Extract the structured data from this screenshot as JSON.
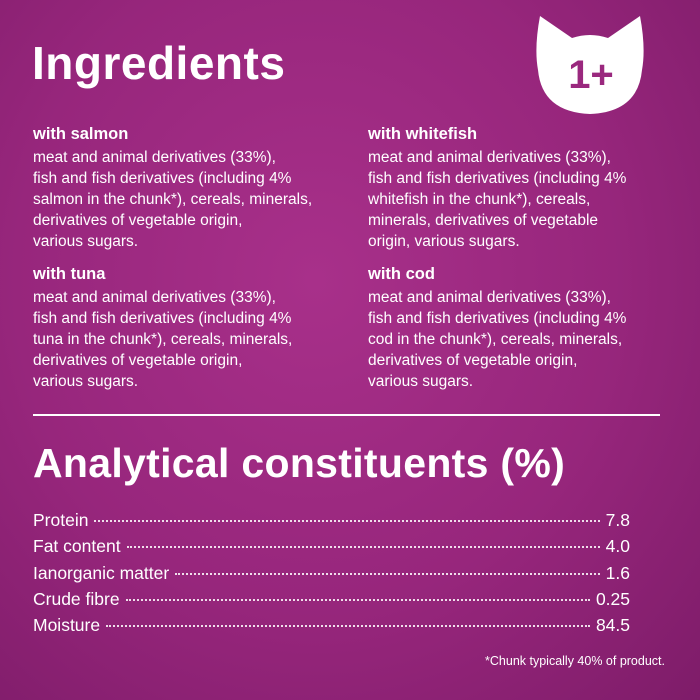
{
  "header": {
    "title": "Ingredients",
    "badge": "1+"
  },
  "ingredients": [
    {
      "title": "with salmon",
      "lines": [
        "meat and animal derivatives (33%),",
        "fish and fish derivatives (including 4%",
        "salmon in the chunk*), cereals, minerals,",
        "derivatives of vegetable origin,",
        "various sugars."
      ]
    },
    {
      "title": "with whitefish",
      "lines": [
        "meat and animal derivatives (33%),",
        "fish and fish derivatives (including 4%",
        "whitefish in the chunk*), cereals,",
        "minerals, derivatives of vegetable",
        "origin, various sugars."
      ]
    },
    {
      "title": "with tuna",
      "lines": [
        "meat and animal derivatives (33%),",
        "fish and fish derivatives (including 4%",
        "tuna in the chunk*), cereals, minerals,",
        "derivatives of vegetable origin,",
        "various sugars."
      ]
    },
    {
      "title": "with cod",
      "lines": [
        "meat and animal derivatives (33%),",
        "fish and fish derivatives (including 4%",
        "cod in the chunk*), cereals, minerals,",
        "derivatives of vegetable origin,",
        "various sugars."
      ]
    }
  ],
  "constituents": {
    "title": "Analytical constituents (%)",
    "rows": [
      [
        "Protein",
        "7.8"
      ],
      [
        "Fat content",
        "4.0"
      ],
      [
        "Ianorganic matter",
        "1.6"
      ],
      [
        "Crude fibre",
        "0.25"
      ],
      [
        "Moisture",
        "84.5"
      ]
    ]
  },
  "footnote": "*Chunk typically 40% of product."
}
